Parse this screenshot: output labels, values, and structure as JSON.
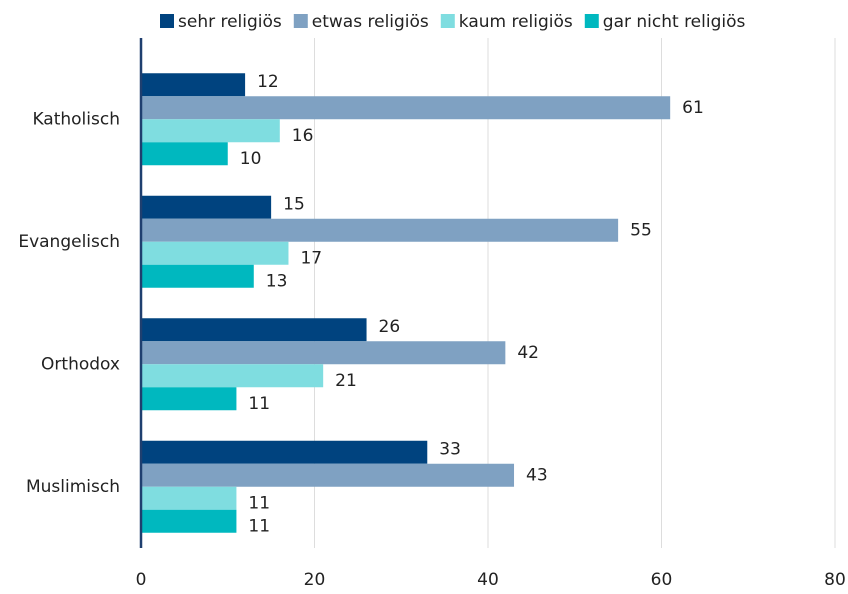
{
  "chart_data": {
    "type": "bar",
    "orientation": "horizontal",
    "categories": [
      "Katholisch",
      "Evangelisch",
      "Orthodox",
      "Muslimisch"
    ],
    "series": [
      {
        "name": "sehr religiös",
        "color": "#00437f",
        "values": [
          12,
          15,
          26,
          33
        ]
      },
      {
        "name": "etwas religiös",
        "color": "#7fa1c2",
        "values": [
          61,
          55,
          42,
          43
        ]
      },
      {
        "name": "kaum religiös",
        "color": "#7fdde0",
        "values": [
          16,
          17,
          21,
          11
        ]
      },
      {
        "name": "gar nicht religiös",
        "color": "#00b8bf",
        "values": [
          10,
          13,
          11,
          11
        ]
      }
    ],
    "xlim": [
      0,
      80
    ],
    "xticks": [
      0,
      20,
      40,
      60,
      80
    ],
    "grid": true,
    "legend": "top"
  }
}
